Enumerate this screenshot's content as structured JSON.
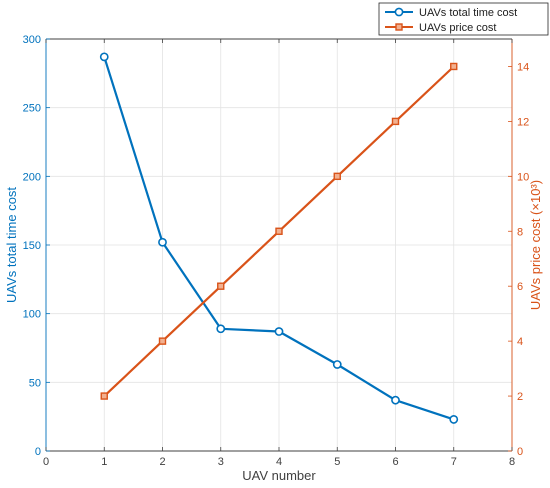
{
  "chart_data": {
    "type": "line",
    "xlabel": "UAV number",
    "ylabel_left": "UAVs total time cost",
    "ylabel_right": "UAVs price cost (×10³)",
    "xlim": [
      0,
      8
    ],
    "xticks": [
      0,
      1,
      2,
      3,
      4,
      5,
      6,
      7,
      8
    ],
    "ylim_left": [
      0,
      300
    ],
    "yticks_left": [
      0,
      50,
      100,
      150,
      200,
      250,
      300
    ],
    "ylim_right": [
      0,
      15
    ],
    "yticks_right": [
      0,
      2,
      4,
      6,
      8,
      10,
      12,
      14
    ],
    "grid": true,
    "legend_position": "top-right",
    "series": [
      {
        "name": "UAVs total time cost",
        "axis": "left",
        "color": "#0072BD",
        "marker": "circle",
        "x": [
          1,
          2,
          3,
          4,
          5,
          6,
          7
        ],
        "values": [
          287,
          152,
          89,
          87,
          63,
          37,
          23
        ]
      },
      {
        "name": "UAVs price cost",
        "axis": "right",
        "color": "#D95319",
        "marker": "square",
        "x": [
          1,
          2,
          3,
          4,
          5,
          6,
          7
        ],
        "values": [
          2,
          4,
          6,
          8,
          10,
          12,
          14
        ]
      }
    ]
  }
}
